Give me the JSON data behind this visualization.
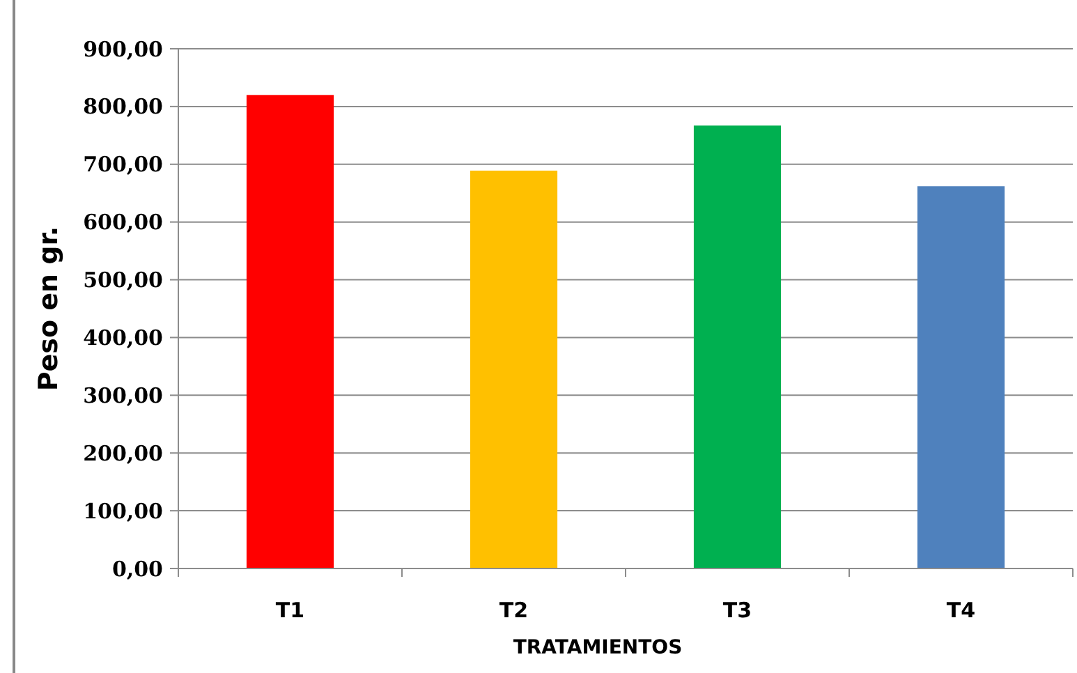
{
  "chart_data": {
    "type": "bar",
    "xlabel": "TRATAMIENTOS",
    "ylabel": "Peso en gr.",
    "categories": [
      "T1",
      "T2",
      "T3",
      "T4"
    ],
    "values": [
      820,
      689,
      767,
      662
    ],
    "colors": [
      "#ff0000",
      "#ffc000",
      "#00b050",
      "#4f81bd"
    ],
    "ylim": [
      0,
      900
    ],
    "yticks": [
      {
        "value": 0,
        "label": "0,00"
      },
      {
        "value": 100,
        "label": "100,00"
      },
      {
        "value": 200,
        "label": "200,00"
      },
      {
        "value": 300,
        "label": "300,00"
      },
      {
        "value": 400,
        "label": "400,00"
      },
      {
        "value": 500,
        "label": "500,00"
      },
      {
        "value": 600,
        "label": "600,00"
      },
      {
        "value": 700,
        "label": "700,00"
      },
      {
        "value": 800,
        "label": "800,00"
      },
      {
        "value": 900,
        "label": "900,00"
      }
    ],
    "grid": "y"
  }
}
